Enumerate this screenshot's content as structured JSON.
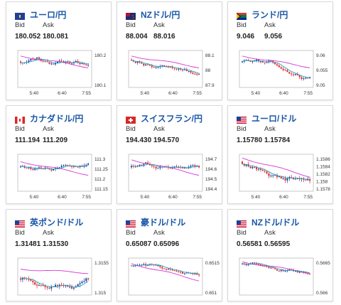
{
  "labels": {
    "bid": "Bid",
    "ask": "Ask"
  },
  "colors": {
    "up": "#1a3fa6",
    "down": "#d62a2a",
    "ma_line": "#d633d6",
    "trend_line": "#2aa3b8",
    "pair_title": "#1a57a8"
  },
  "cards": [
    {
      "pair": "ユーロ/円",
      "flag_icon": "eu-flag-icon",
      "bid": "180.052",
      "ask": "180.081",
      "time_ticks": [
        "5:40",
        "6:40",
        "7:55"
      ],
      "price_ticks": [
        "180.2",
        "180.1"
      ]
    },
    {
      "pair": "NZドル/円",
      "flag_icon": "nz-flag-icon",
      "bid": "88.004",
      "ask": "88.016",
      "time_ticks": [
        "5:40",
        "6:40",
        "7:55"
      ],
      "price_ticks": [
        "88.1",
        "88",
        "87.9"
      ]
    },
    {
      "pair": "ランド/円",
      "flag_icon": "za-flag-icon",
      "bid": "9.046",
      "ask": "9.056",
      "time_ticks": [
        "5:40",
        "6:40",
        "7:55"
      ],
      "price_ticks": [
        "9.06",
        "9.055",
        "9.05"
      ]
    },
    {
      "pair": "カナダドル/円",
      "flag_icon": "ca-flag-icon",
      "bid": "111.194",
      "ask": "111.209",
      "time_ticks": [
        "5:40",
        "6:40",
        "7:55"
      ],
      "price_ticks": [
        "111.3",
        "111.25",
        "111.2",
        "111.15"
      ]
    },
    {
      "pair": "スイスフラン/円",
      "flag_icon": "ch-flag-icon",
      "bid": "194.430",
      "ask": "194.570",
      "time_ticks": [
        "5:40",
        "6:40",
        "7:55"
      ],
      "price_ticks": [
        "194.7",
        "194.6",
        "194.5",
        "194.4"
      ]
    },
    {
      "pair": "ユーロ/ドル",
      "flag_icon": "eu-us-flag-icon",
      "bid": "1.15780",
      "ask": "1.15784",
      "time_ticks": [
        "5:40",
        "6:40",
        "7:55"
      ],
      "price_ticks": [
        "1.1586",
        "1.1584",
        "1.1582",
        "1.158",
        "1.1578"
      ]
    },
    {
      "pair": "英ポンド/ドル",
      "flag_icon": "gb-us-flag-icon",
      "bid": "1.31481",
      "ask": "1.31530",
      "time_ticks": [],
      "price_ticks": [
        "1.3155",
        "1.315"
      ]
    },
    {
      "pair": "豪ドル/ドル",
      "flag_icon": "au-us-flag-icon",
      "bid": "0.65087",
      "ask": "0.65096",
      "time_ticks": [],
      "price_ticks": [
        "0.6515",
        "0.651"
      ]
    },
    {
      "pair": "NZドル/ドル",
      "flag_icon": "nz-us-flag-icon",
      "bid": "0.56581",
      "ask": "0.56595",
      "time_ticks": [],
      "price_ticks": [
        "0.5665",
        "0.566"
      ]
    }
  ]
}
